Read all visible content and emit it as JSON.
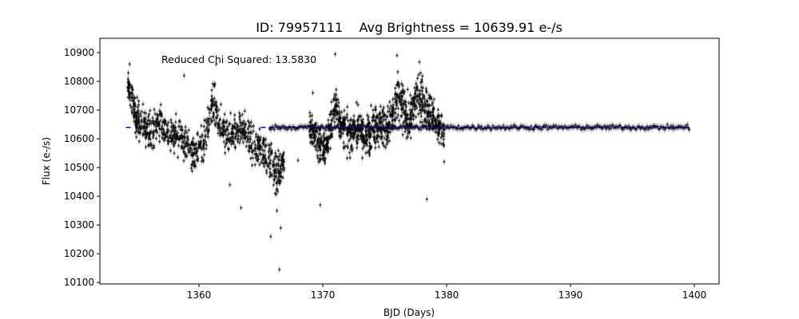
{
  "chart_data": {
    "type": "scatter",
    "title": "ID: 79957111    Avg Brightness = 10639.91 e-/s",
    "xlabel": "BJD (Days)",
    "ylabel": "Flux (e-/s)",
    "xlim": [
      1352.0,
      1402.0
    ],
    "ylim": [
      10095,
      10950
    ],
    "xticks": [
      1360,
      1370,
      1380,
      1390,
      1400
    ],
    "yticks": [
      10100,
      10200,
      10300,
      10400,
      10500,
      10600,
      10700,
      10800,
      10900
    ],
    "annotation": "Reduced Chi Squared: 13.5830",
    "grid": false,
    "average_level": 10639.91,
    "model_line": {
      "style": "dashed",
      "color": "#0000cc",
      "segments": [
        [
          1354.1,
          1354.6
        ],
        [
          1365.0,
          1365.7
        ],
        [
          1365.7,
          1399.6
        ]
      ]
    },
    "series": [
      {
        "color": "#000000",
        "marker": "dot with errorbars",
        "segments": [
          {
            "x": [
              1354.2,
              1354.5,
              1354.8,
              1355.0,
              1355.3,
              1355.7,
              1356.0,
              1356.4,
              1356.8,
              1357.2,
              1357.6,
              1358.0,
              1358.4,
              1358.8,
              1359.2,
              1359.6,
              1360.0,
              1360.4,
              1360.8,
              1361.2,
              1361.6,
              1362.0,
              1362.4,
              1362.8,
              1363.2,
              1363.6,
              1364.0,
              1364.4,
              1364.8,
              1365.2,
              1365.6,
              1366.0,
              1366.3,
              1366.6,
              1366.9
            ],
            "y": [
              10790,
              10750,
              10700,
              10670,
              10650,
              10640,
              10630,
              10640,
              10660,
              10640,
              10620,
              10610,
              10610,
              10600,
              10570,
              10550,
              10560,
              10590,
              10660,
              10720,
              10650,
              10620,
              10610,
              10620,
              10640,
              10640,
              10600,
              10570,
              10570,
              10560,
              10530,
              10510,
              10470,
              10500,
              10540
            ],
            "spread": [
              22,
              24,
              30,
              32,
              32,
              32,
              32,
              30,
              30,
              30,
              30,
              28,
              30,
              30,
              32,
              32,
              32,
              32,
              34,
              36,
              34,
              32,
              30,
              30,
              30,
              30,
              30,
              30,
              30,
              30,
              30,
              32,
              36,
              32,
              28
            ]
          },
          {
            "x": [
              1368.9,
              1369.2,
              1369.5,
              1369.8,
              1370.1,
              1370.4,
              1370.7,
              1371.0,
              1371.3,
              1371.6,
              1371.9,
              1372.2,
              1372.5,
              1372.8,
              1373.1,
              1373.4,
              1373.7,
              1374.0,
              1374.3,
              1374.6,
              1374.9,
              1375.2,
              1375.5,
              1375.8,
              1376.1,
              1376.4,
              1376.7,
              1377.0,
              1377.3,
              1377.6,
              1377.9,
              1378.2,
              1378.5,
              1378.8,
              1379.1,
              1379.4,
              1379.8
            ],
            "y": [
              10650,
              10620,
              10600,
              10580,
              10560,
              10600,
              10650,
              10720,
              10680,
              10640,
              10620,
              10610,
              10630,
              10640,
              10620,
              10600,
              10620,
              10640,
              10650,
              10660,
              10640,
              10640,
              10660,
              10700,
              10740,
              10720,
              10680,
              10660,
              10700,
              10740,
              10760,
              10720,
              10700,
              10680,
              10660,
              10640,
              10620
            ],
            "spread": [
              32,
              32,
              34,
              34,
              36,
              34,
              34,
              36,
              34,
              32,
              32,
              32,
              32,
              32,
              32,
              32,
              34,
              34,
              36,
              36,
              36,
              36,
              38,
              40,
              40,
              38,
              36,
              36,
              38,
              40,
              40,
              38,
              36,
              36,
              34,
              32,
              30
            ]
          }
        ],
        "flat_segment": {
          "x_start": 1365.7,
          "x_end": 1399.6,
          "y": 10639.91,
          "spread": 4
        }
      }
    ],
    "outliers": [
      {
        "x": 1366.5,
        "y": 10145
      },
      {
        "x": 1365.8,
        "y": 10260
      },
      {
        "x": 1366.3,
        "y": 10350
      },
      {
        "x": 1366.6,
        "y": 10290
      },
      {
        "x": 1363.4,
        "y": 10360
      },
      {
        "x": 1368.0,
        "y": 10525
      },
      {
        "x": 1371.0,
        "y": 10895
      },
      {
        "x": 1369.8,
        "y": 10370
      },
      {
        "x": 1378.4,
        "y": 10390
      },
      {
        "x": 1379.8,
        "y": 10520
      },
      {
        "x": 1361.4,
        "y": 10860
      },
      {
        "x": 1376.0,
        "y": 10890
      },
      {
        "x": 1354.4,
        "y": 10860
      },
      {
        "x": 1358.8,
        "y": 10820
      },
      {
        "x": 1362.5,
        "y": 10440
      },
      {
        "x": 1369.2,
        "y": 10760
      }
    ]
  }
}
